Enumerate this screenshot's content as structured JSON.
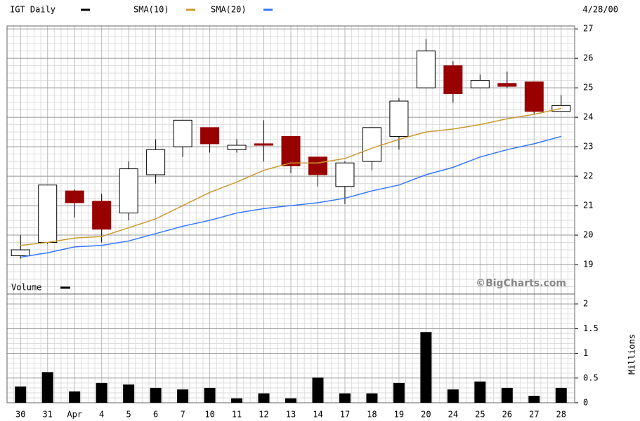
{
  "chart_data": [
    {
      "type": "candlestick",
      "name": "IGT Daily",
      "color": "#000000",
      "up_color": "#ffffff",
      "down_color": "#990000",
      "open": [
        19.3,
        19.75,
        21.5,
        21.15,
        20.75,
        22.05,
        23.0,
        23.65,
        22.9,
        23.1,
        23.35,
        22.65,
        21.65,
        22.5,
        23.35,
        25.0,
        25.75,
        25.0,
        25.15,
        25.2,
        24.2
      ],
      "high": [
        20.0,
        21.7,
        21.55,
        21.4,
        22.5,
        23.25,
        23.9,
        23.65,
        23.25,
        23.9,
        23.35,
        22.65,
        22.5,
        23.65,
        24.65,
        26.65,
        25.9,
        25.45,
        25.55,
        25.2,
        24.75
      ],
      "low": [
        19.2,
        19.7,
        20.6,
        19.75,
        20.5,
        21.75,
        22.65,
        22.8,
        22.8,
        22.5,
        22.1,
        21.65,
        21.05,
        22.2,
        22.9,
        25.0,
        24.5,
        25.0,
        25.0,
        24.1,
        24.2
      ],
      "close": [
        19.5,
        21.7,
        21.1,
        20.2,
        22.25,
        22.9,
        23.9,
        23.1,
        23.05,
        23.05,
        22.35,
        22.05,
        22.45,
        23.65,
        24.55,
        26.25,
        24.8,
        25.25,
        25.05,
        24.2,
        24.4
      ],
      "series": [
        {
          "name": "SMA(10)",
          "color": "#cc9933",
          "values": [
            19.65,
            19.75,
            19.9,
            19.95,
            20.25,
            20.55,
            21.0,
            21.45,
            21.8,
            22.2,
            22.45,
            22.45,
            22.6,
            22.95,
            23.25,
            23.5,
            23.6,
            23.75,
            23.95,
            24.1,
            24.3
          ]
        },
        {
          "name": "SMA(20)",
          "color": "#3377ff",
          "values": [
            19.25,
            19.4,
            19.6,
            19.65,
            19.8,
            20.05,
            20.3,
            20.5,
            20.75,
            20.9,
            21.0,
            21.1,
            21.25,
            21.5,
            21.7,
            22.05,
            22.3,
            22.65,
            22.9,
            23.1,
            23.35
          ]
        }
      ],
      "ylim": [
        18,
        27.1
      ],
      "yticks": [
        19,
        20,
        21,
        22,
        23,
        24,
        25,
        26,
        27
      ],
      "grid": true
    },
    {
      "type": "bar",
      "name": "Volume",
      "color": "#000000",
      "y_label": "Millions",
      "categories": [
        "30",
        "31",
        "Apr",
        "4",
        "5",
        "6",
        "7",
        "10",
        "11",
        "12",
        "13",
        "14",
        "17",
        "18",
        "19",
        "20",
        "24",
        "25",
        "26",
        "27",
        "28"
      ],
      "values": [
        0.33,
        0.62,
        0.23,
        0.4,
        0.37,
        0.3,
        0.27,
        0.3,
        0.09,
        0.19,
        0.09,
        0.51,
        0.19,
        0.19,
        0.4,
        1.43,
        0.27,
        0.43,
        0.3,
        0.14,
        0.3
      ],
      "ylim": [
        0,
        2.2
      ],
      "yticks": [
        0,
        0.5,
        1,
        1.5,
        2
      ],
      "grid": true
    }
  ],
  "date": "4/28/00",
  "watermark": "©BigCharts.com"
}
